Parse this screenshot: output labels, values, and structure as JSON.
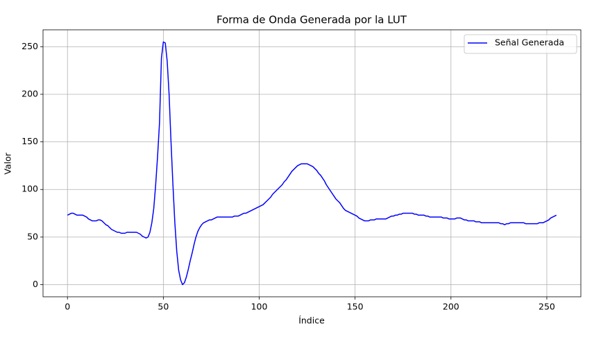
{
  "chart_data": {
    "type": "line",
    "title": "Forma de Onda Generada por la LUT",
    "x_label": "Índice",
    "y_label": "Valor",
    "x": [
      0,
      1,
      2,
      3,
      4,
      5,
      6,
      7,
      8,
      9,
      10,
      11,
      12,
      13,
      14,
      15,
      16,
      17,
      18,
      19,
      20,
      21,
      22,
      23,
      24,
      25,
      26,
      27,
      28,
      29,
      30,
      31,
      32,
      33,
      34,
      35,
      36,
      37,
      38,
      39,
      40,
      41,
      42,
      43,
      44,
      45,
      46,
      47,
      48,
      49,
      50,
      51,
      52,
      53,
      54,
      55,
      56,
      57,
      58,
      59,
      60,
      61,
      62,
      63,
      64,
      65,
      66,
      67,
      68,
      69,
      70,
      71,
      72,
      73,
      74,
      75,
      76,
      77,
      78,
      79,
      80,
      81,
      82,
      83,
      84,
      85,
      86,
      87,
      88,
      89,
      90,
      91,
      92,
      93,
      94,
      95,
      96,
      97,
      98,
      99,
      100,
      101,
      102,
      103,
      104,
      105,
      106,
      107,
      108,
      109,
      110,
      111,
      112,
      113,
      114,
      115,
      116,
      117,
      118,
      119,
      120,
      121,
      122,
      123,
      124,
      125,
      126,
      127,
      128,
      129,
      130,
      131,
      132,
      133,
      134,
      135,
      136,
      137,
      138,
      139,
      140,
      141,
      142,
      143,
      144,
      145,
      146,
      147,
      148,
      149,
      150,
      151,
      152,
      153,
      154,
      155,
      156,
      157,
      158,
      159,
      160,
      161,
      162,
      163,
      164,
      165,
      166,
      167,
      168,
      169,
      170,
      171,
      172,
      173,
      174,
      175,
      176,
      177,
      178,
      179,
      180,
      181,
      182,
      183,
      184,
      185,
      186,
      187,
      188,
      189,
      190,
      191,
      192,
      193,
      194,
      195,
      196,
      197,
      198,
      199,
      200,
      201,
      202,
      203,
      204,
      205,
      206,
      207,
      208,
      209,
      210,
      211,
      212,
      213,
      214,
      215,
      216,
      217,
      218,
      219,
      220,
      221,
      222,
      223,
      224,
      225,
      226,
      227,
      228,
      229,
      230,
      231,
      232,
      233,
      234,
      235,
      236,
      237,
      238,
      239,
      240,
      241,
      242,
      243,
      244,
      245,
      246,
      247,
      248,
      249,
      250,
      251,
      252,
      253,
      254,
      255
    ],
    "series": [
      {
        "name": "Señal Generada",
        "color": "#0000ff",
        "values": [
          73,
          74,
          75,
          75,
          74,
          73,
          73,
          73,
          73,
          72,
          71,
          69,
          68,
          67,
          67,
          67,
          68,
          68,
          67,
          65,
          63,
          62,
          60,
          58,
          57,
          56,
          55,
          55,
          54,
          54,
          54,
          55,
          55,
          55,
          55,
          55,
          55,
          54,
          53,
          51,
          50,
          49,
          50,
          55,
          65,
          80,
          105,
          135,
          170,
          238,
          255,
          254,
          235,
          200,
          150,
          105,
          65,
          35,
          15,
          5,
          0,
          2,
          8,
          16,
          25,
          33,
          42,
          50,
          56,
          60,
          63,
          65,
          66,
          67,
          68,
          68,
          69,
          70,
          71,
          71,
          71,
          71,
          71,
          71,
          71,
          71,
          71,
          72,
          72,
          72,
          73,
          74,
          75,
          75,
          76,
          77,
          78,
          79,
          80,
          81,
          82,
          83,
          84,
          86,
          88,
          90,
          92,
          95,
          97,
          99,
          101,
          103,
          105,
          108,
          110,
          113,
          116,
          119,
          121,
          123,
          125,
          126,
          127,
          127,
          127,
          127,
          126,
          125,
          124,
          122,
          120,
          117,
          115,
          112,
          109,
          105,
          102,
          99,
          96,
          93,
          90,
          88,
          86,
          83,
          80,
          78,
          77,
          76,
          75,
          74,
          73,
          72,
          70,
          69,
          68,
          67,
          67,
          67,
          68,
          68,
          68,
          69,
          69,
          69,
          69,
          69,
          69,
          70,
          71,
          72,
          72,
          73,
          73,
          74,
          74,
          75,
          75,
          75,
          75,
          75,
          75,
          74,
          74,
          73,
          73,
          73,
          73,
          72,
          72,
          71,
          71,
          71,
          71,
          71,
          71,
          71,
          70,
          70,
          70,
          69,
          69,
          69,
          69,
          70,
          70,
          70,
          69,
          68,
          68,
          67,
          67,
          67,
          67,
          66,
          66,
          66,
          65,
          65,
          65,
          65,
          65,
          65,
          65,
          65,
          65,
          65,
          64,
          64,
          63,
          64,
          64,
          65,
          65,
          65,
          65,
          65,
          65,
          65,
          65,
          64,
          64,
          64,
          64,
          64,
          64,
          64,
          65,
          65,
          65,
          66,
          67,
          68,
          70,
          71,
          72,
          73
        ]
      }
    ],
    "xlim": [
      -12.75,
      267.75
    ],
    "ylim": [
      -12.75,
      267.75
    ],
    "xticks": [
      0,
      50,
      100,
      150,
      200,
      250
    ],
    "yticks": [
      0,
      50,
      100,
      150,
      200,
      250
    ],
    "grid": true,
    "legend": "upper right"
  }
}
